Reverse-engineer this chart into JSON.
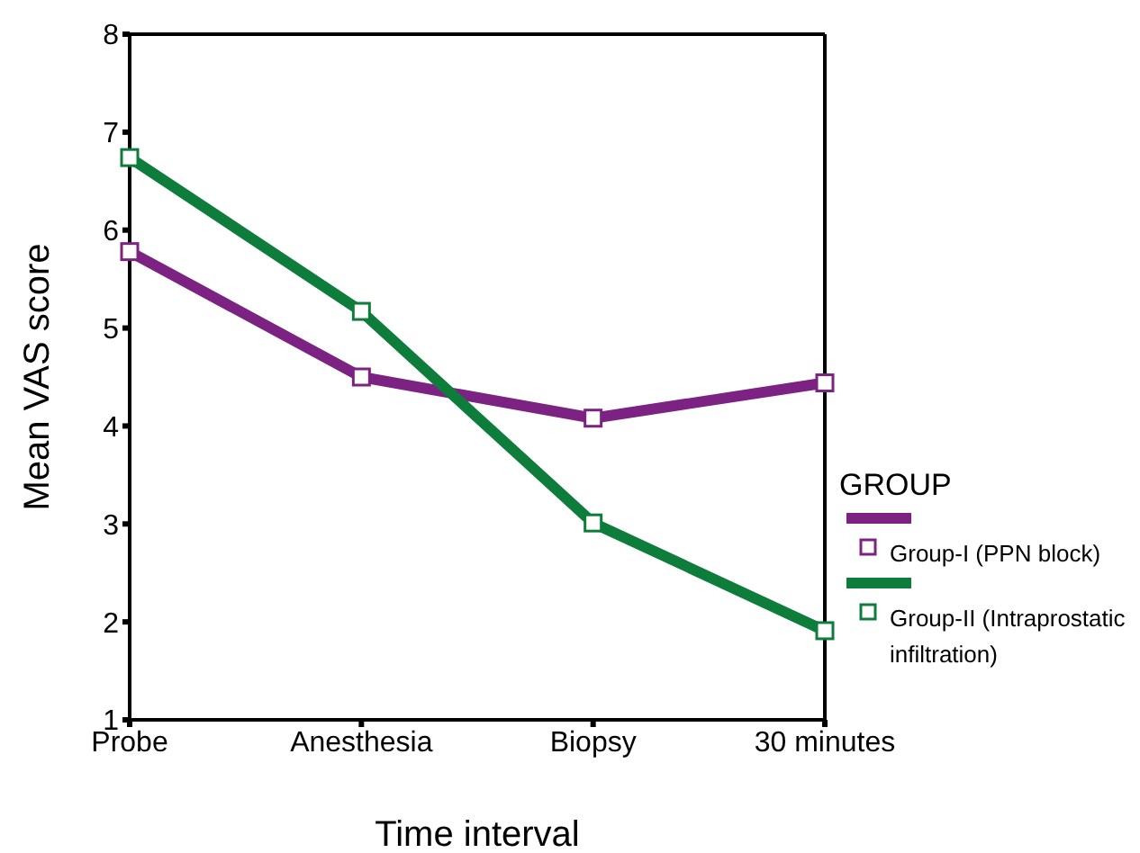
{
  "chart_data": {
    "type": "line",
    "xlabel": "Time interval",
    "ylabel": "Mean VAS score",
    "legend_title": "GROUP",
    "categories": [
      "Probe",
      "Anesthesia",
      "Biopsy",
      "30 minutes"
    ],
    "series": [
      {
        "name": "Group-I (PPN block)",
        "color": "#7b2282",
        "values": [
          5.78,
          4.5,
          4.08,
          4.44
        ]
      },
      {
        "name": "Group-II (Intraprostatic infiltration)",
        "color": "#0e7d3c",
        "values": [
          6.74,
          5.17,
          3.01,
          1.91
        ]
      }
    ],
    "ylim": [
      1,
      8
    ],
    "yticks": [
      1,
      2,
      3,
      4,
      5,
      6,
      7,
      8
    ],
    "legend": "right",
    "marker": "square",
    "line_style": "solid"
  }
}
